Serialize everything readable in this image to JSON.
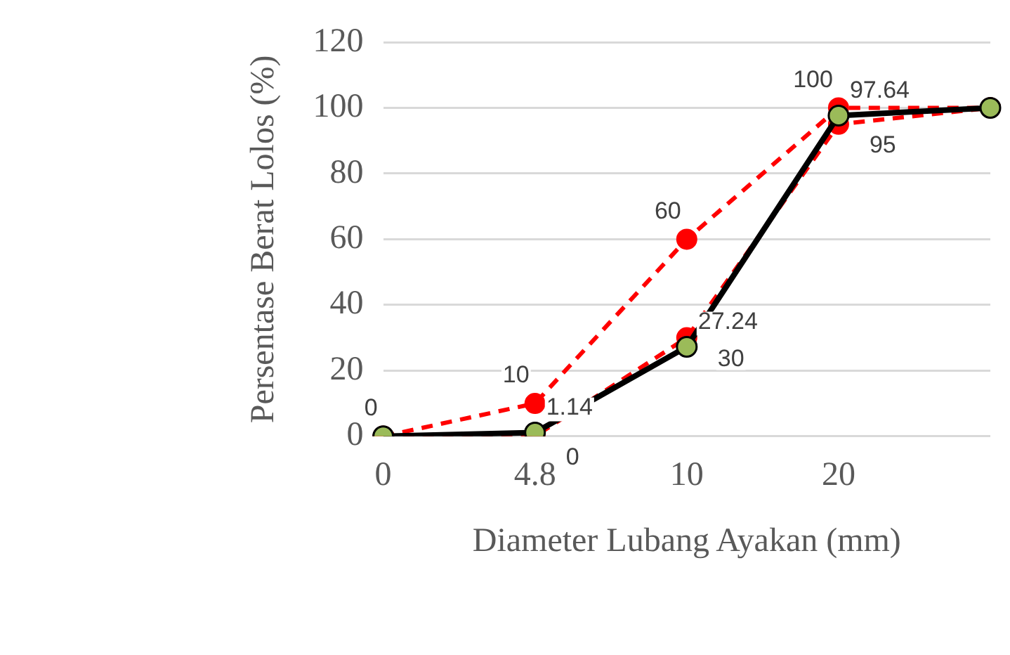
{
  "chart_data": {
    "type": "line",
    "xlabel": "Diameter Lubang Ayakan (mm)",
    "ylabel": "Persentase Berat Lolos (%)",
    "categories": [
      "0",
      "4.8",
      "10",
      "20",
      null
    ],
    "series": [
      {
        "color": "#ff0000",
        "line_style": "dashed",
        "values": [
          0,
          10,
          60,
          100,
          100
        ],
        "value_labels": [
          "0",
          "10",
          "60",
          "100",
          null
        ]
      },
      {
        "color": "#ff0000",
        "line_style": "dashed",
        "values": [
          0,
          0,
          30,
          95,
          100
        ],
        "value_labels": [
          null,
          "0",
          "30",
          "95",
          null
        ]
      },
      {
        "color": "#000000",
        "line_style": "solid",
        "values": [
          0,
          1.14,
          27.24,
          97.64,
          100
        ],
        "value_labels": [
          null,
          "1.14",
          "27.24",
          "97.64",
          null
        ]
      }
    ],
    "ylim": [
      0,
      120
    ],
    "yticks": [
      0,
      20,
      40,
      60,
      80,
      100,
      120
    ],
    "grid": "y",
    "legend": false,
    "marker": "circle"
  }
}
